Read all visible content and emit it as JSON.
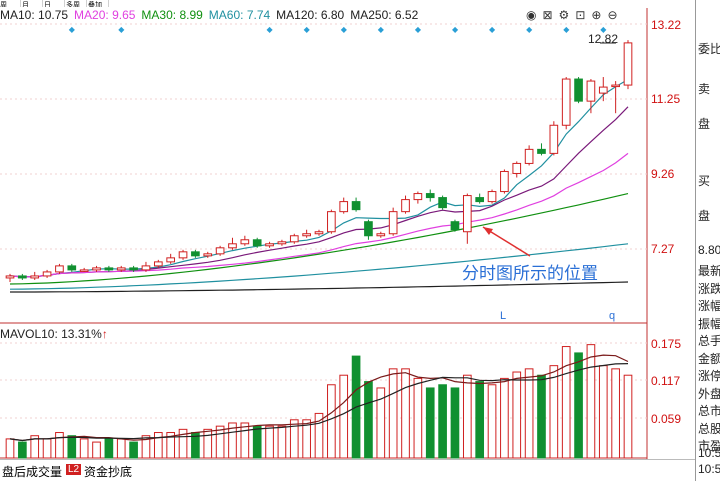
{
  "top_tabs": [
    "周",
    "月",
    "日",
    "多周期",
    "叠加"
  ],
  "ma_legend": [
    {
      "label": "MA10: 10.75",
      "color": "#222222"
    },
    {
      "label": "MA20: 9.65",
      "color": "#e040e0"
    },
    {
      "label": "MA30: 8.99",
      "color": "#109010"
    },
    {
      "label": "MA60: 7.74",
      "color": "#2090a0"
    },
    {
      "label": "MA120: 6.80",
      "color": "#202020"
    },
    {
      "label": "MA250: 6.52",
      "color": "#202020"
    }
  ],
  "toolbar_icons": [
    "eye-icon",
    "close-box-icon",
    "settings-icon",
    "expand-icon",
    "plus-circle-icon",
    "minus-circle-icon"
  ],
  "toolbar_glyphs": [
    "◉",
    "⊠",
    "⚙",
    "⊡",
    "⊕",
    "⊖"
  ],
  "price_axis": [
    "13.22",
    "11.25",
    "9.26",
    "7.27"
  ],
  "high_label": "12.82",
  "volume_legend": "MAVOL10: 13.31%",
  "volume_axis": [
    "0.175",
    "0.117",
    "0.059"
  ],
  "letter_marks": [
    "L",
    "q"
  ],
  "annotation": "分时图所示的位置",
  "bottom_tabs": {
    "after_hours": "盘后成交量",
    "l2_badge": "L2",
    "capital": "资金抄底"
  },
  "right_panel": {
    "top": "委比",
    "sell": "卖\n盘",
    "buy": "买\n盘",
    "last_price": "8.80",
    "rows": [
      "最新",
      "涨跌",
      "涨幅",
      "振幅",
      "总手",
      "金额",
      "涨停",
      "外盘",
      "总市",
      "总股",
      "市盈"
    ],
    "times": [
      "10:5",
      "10:5"
    ]
  },
  "colors": {
    "up": "#d02020",
    "down": "#109030",
    "ma10": "#222222",
    "ma20": "#e040e0",
    "ma30": "#109010",
    "ma60": "#2090a0",
    "annotation": "#2a6fd6"
  },
  "candles": [
    {
      "o": 6.9,
      "c": 6.95,
      "h": 7.0,
      "l": 6.8
    },
    {
      "o": 6.95,
      "c": 6.9,
      "h": 7.0,
      "l": 6.85
    },
    {
      "o": 6.9,
      "c": 6.95,
      "h": 7.05,
      "l": 6.85
    },
    {
      "o": 6.95,
      "c": 7.05,
      "h": 7.1,
      "l": 6.9
    },
    {
      "o": 7.05,
      "c": 7.2,
      "h": 7.25,
      "l": 7.0
    },
    {
      "o": 7.2,
      "c": 7.1,
      "h": 7.25,
      "l": 7.05
    },
    {
      "o": 7.1,
      "c": 7.1,
      "h": 7.15,
      "l": 7.05
    },
    {
      "o": 7.1,
      "c": 7.15,
      "h": 7.2,
      "l": 7.05
    },
    {
      "o": 7.15,
      "c": 7.1,
      "h": 7.2,
      "l": 7.05
    },
    {
      "o": 7.1,
      "c": 7.15,
      "h": 7.2,
      "l": 7.05
    },
    {
      "o": 7.15,
      "c": 7.1,
      "h": 7.2,
      "l": 7.05
    },
    {
      "o": 7.1,
      "c": 7.2,
      "h": 7.3,
      "l": 7.05
    },
    {
      "o": 7.2,
      "c": 7.3,
      "h": 7.35,
      "l": 7.15
    },
    {
      "o": 7.3,
      "c": 7.4,
      "h": 7.5,
      "l": 7.25
    },
    {
      "o": 7.4,
      "c": 7.55,
      "h": 7.6,
      "l": 7.35
    },
    {
      "o": 7.55,
      "c": 7.45,
      "h": 7.6,
      "l": 7.4
    },
    {
      "o": 7.45,
      "c": 7.5,
      "h": 7.55,
      "l": 7.4
    },
    {
      "o": 7.5,
      "c": 7.65,
      "h": 7.7,
      "l": 7.45
    },
    {
      "o": 7.65,
      "c": 7.75,
      "h": 7.9,
      "l": 7.6
    },
    {
      "o": 7.75,
      "c": 7.85,
      "h": 7.95,
      "l": 7.7
    },
    {
      "o": 7.85,
      "c": 7.7,
      "h": 7.9,
      "l": 7.65
    },
    {
      "o": 7.7,
      "c": 7.75,
      "h": 7.8,
      "l": 7.65
    },
    {
      "o": 7.75,
      "c": 7.8,
      "h": 7.85,
      "l": 7.7
    },
    {
      "o": 7.8,
      "c": 7.95,
      "h": 8.0,
      "l": 7.75
    },
    {
      "o": 7.95,
      "c": 8.0,
      "h": 8.1,
      "l": 7.9
    },
    {
      "o": 8.0,
      "c": 8.05,
      "h": 8.1,
      "l": 7.95
    },
    {
      "o": 8.05,
      "c": 8.55,
      "h": 8.6,
      "l": 8.0
    },
    {
      "o": 8.55,
      "c": 8.8,
      "h": 8.9,
      "l": 8.5
    },
    {
      "o": 8.8,
      "c": 8.6,
      "h": 8.9,
      "l": 8.55
    },
    {
      "o": 8.3,
      "c": 7.95,
      "h": 8.35,
      "l": 7.85
    },
    {
      "o": 7.95,
      "c": 8.0,
      "h": 8.05,
      "l": 7.9
    },
    {
      "o": 8.0,
      "c": 8.55,
      "h": 8.65,
      "l": 7.95
    },
    {
      "o": 8.55,
      "c": 8.85,
      "h": 8.95,
      "l": 8.5
    },
    {
      "o": 8.85,
      "c": 9.0,
      "h": 9.05,
      "l": 8.75
    },
    {
      "o": 9.0,
      "c": 8.9,
      "h": 9.1,
      "l": 8.8
    },
    {
      "o": 8.9,
      "c": 8.65,
      "h": 8.95,
      "l": 8.6
    },
    {
      "o": 8.3,
      "c": 8.1,
      "h": 8.35,
      "l": 8.05
    },
    {
      "o": 8.05,
      "c": 8.95,
      "h": 9.0,
      "l": 7.75
    },
    {
      "o": 8.9,
      "c": 8.8,
      "h": 9.0,
      "l": 8.75
    },
    {
      "o": 8.8,
      "c": 9.05,
      "h": 9.1,
      "l": 8.75
    },
    {
      "o": 9.05,
      "c": 9.55,
      "h": 9.6,
      "l": 9.0
    },
    {
      "o": 9.5,
      "c": 9.75,
      "h": 9.8,
      "l": 9.4
    },
    {
      "o": 9.75,
      "c": 10.1,
      "h": 10.2,
      "l": 9.7
    },
    {
      "o": 10.1,
      "c": 10.0,
      "h": 10.25,
      "l": 9.95
    },
    {
      "o": 10.0,
      "c": 10.7,
      "h": 10.8,
      "l": 9.95
    },
    {
      "o": 10.7,
      "c": 11.85,
      "h": 11.9,
      "l": 10.6
    },
    {
      "o": 11.85,
      "c": 11.3,
      "h": 11.9,
      "l": 11.25
    },
    {
      "o": 11.3,
      "c": 11.8,
      "h": 11.85,
      "l": 11.0
    },
    {
      "o": 11.5,
      "c": 11.65,
      "h": 11.9,
      "l": 11.3
    },
    {
      "o": 11.7,
      "c": 11.7,
      "h": 11.8,
      "l": 11.0
    },
    {
      "o": 11.7,
      "c": 12.75,
      "h": 12.82,
      "l": 11.6
    }
  ],
  "volumes": [
    0.03,
    0.025,
    0.035,
    0.03,
    0.04,
    0.035,
    0.03,
    0.025,
    0.03,
    0.03,
    0.025,
    0.035,
    0.04,
    0.04,
    0.045,
    0.04,
    0.045,
    0.05,
    0.055,
    0.055,
    0.05,
    0.05,
    0.05,
    0.06,
    0.06,
    0.07,
    0.115,
    0.13,
    0.16,
    0.12,
    0.11,
    0.14,
    0.14,
    0.125,
    0.11,
    0.115,
    0.11,
    0.13,
    0.12,
    0.115,
    0.125,
    0.135,
    0.14,
    0.13,
    0.145,
    0.175,
    0.165,
    0.178,
    0.145,
    0.14,
    0.13
  ]
}
